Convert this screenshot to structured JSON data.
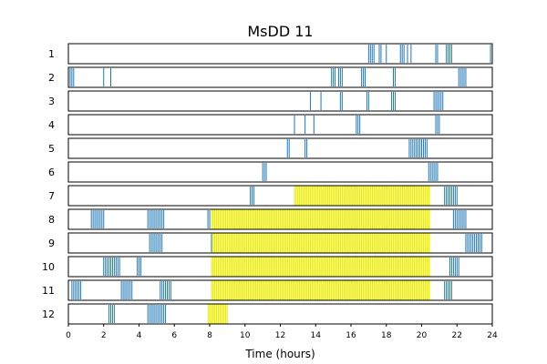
{
  "chart_data": {
    "type": "event-raster",
    "title": "MsDD 11",
    "xlabel": "Time (hours)",
    "ylabel": "",
    "xlim": [
      0,
      24
    ],
    "x_ticks": [
      0,
      2,
      4,
      6,
      8,
      10,
      12,
      14,
      16,
      18,
      20,
      22,
      24
    ],
    "grid": false,
    "event_color": "#1f77b4",
    "highlight_color": "#ffff66",
    "highlight_line_color": "#cccc00",
    "rows": [
      {
        "label": "1",
        "highlight": [],
        "events": [
          17.0,
          17.1,
          17.2,
          17.3,
          17.6,
          17.7,
          18.0,
          18.8,
          18.9,
          19.0,
          19.2,
          19.4,
          20.8,
          20.9,
          21.4,
          21.5,
          21.6,
          21.7,
          23.9
        ]
      },
      {
        "label": "2",
        "highlight": [],
        "events": [
          0.0,
          0.1,
          0.2,
          0.3,
          2.0,
          2.4,
          14.9,
          15.0,
          15.1,
          15.3,
          15.4,
          15.5,
          16.6,
          16.7,
          16.8,
          18.4,
          18.5,
          22.1,
          22.2,
          22.3,
          22.4,
          22.5
        ]
      },
      {
        "label": "3",
        "highlight": [],
        "events": [
          13.7,
          14.3,
          15.4,
          15.5,
          16.9,
          17.0,
          18.3,
          18.4,
          18.5,
          20.7,
          20.8,
          20.9,
          21.0,
          21.1,
          21.2
        ]
      },
      {
        "label": "4",
        "highlight": [],
        "events": [
          12.8,
          13.4,
          13.9,
          16.3,
          16.4,
          16.5,
          20.8,
          20.9,
          21.0
        ]
      },
      {
        "label": "5",
        "highlight": [],
        "events": [
          12.4,
          12.5,
          13.4,
          13.5,
          19.3,
          19.4,
          19.5,
          19.6,
          19.7,
          19.8,
          19.9,
          20.0,
          20.1,
          20.2,
          20.3
        ]
      },
      {
        "label": "6",
        "highlight": [],
        "events": [
          11.0,
          11.1,
          11.2,
          20.4,
          20.5,
          20.6,
          20.7,
          20.8,
          20.9
        ]
      },
      {
        "label": "7",
        "highlight": [
          [
            12.8,
            20.5
          ]
        ],
        "events": [
          10.3,
          10.4,
          10.5,
          21.3,
          21.4,
          21.5,
          21.6,
          21.7,
          21.8,
          21.9,
          22.0
        ]
      },
      {
        "label": "8",
        "highlight": [
          [
            8.1,
            20.5
          ]
        ],
        "events": [
          1.3,
          1.4,
          1.5,
          1.6,
          1.7,
          1.8,
          1.9,
          2.0,
          4.5,
          4.6,
          4.7,
          4.8,
          4.9,
          5.0,
          5.1,
          5.2,
          5.3,
          5.4,
          7.9,
          8.0,
          21.8,
          21.9,
          22.0,
          22.1,
          22.2,
          22.3,
          22.4,
          22.5
        ]
      },
      {
        "label": "9",
        "highlight": [
          [
            8.1,
            20.5
          ]
        ],
        "events": [
          4.6,
          4.7,
          4.8,
          4.9,
          5.0,
          5.1,
          5.2,
          5.3,
          8.1,
          22.5,
          22.6,
          22.7,
          22.8,
          22.9,
          23.0,
          23.1,
          23.2,
          23.3,
          23.4
        ]
      },
      {
        "label": "10",
        "highlight": [
          [
            8.1,
            20.5
          ]
        ],
        "events": [
          2.0,
          2.1,
          2.2,
          2.3,
          2.4,
          2.5,
          2.6,
          2.7,
          2.8,
          2.9,
          3.9,
          4.0,
          4.1,
          21.6,
          21.7,
          21.8,
          21.9,
          22.0,
          22.1
        ]
      },
      {
        "label": "11",
        "highlight": [
          [
            8.1,
            20.5
          ]
        ],
        "events": [
          0.2,
          0.3,
          0.4,
          0.5,
          0.6,
          0.7,
          3.0,
          3.1,
          3.2,
          3.3,
          3.4,
          3.5,
          3.6,
          5.2,
          5.3,
          5.4,
          5.5,
          5.6,
          5.7,
          5.8,
          21.3,
          21.4,
          21.5,
          21.6,
          21.7
        ]
      },
      {
        "label": "12",
        "highlight": [
          [
            7.9,
            9.0
          ]
        ],
        "events": [
          2.3,
          2.4,
          2.5,
          2.6,
          4.5,
          4.6,
          4.7,
          4.8,
          4.9,
          5.0,
          5.1,
          5.2,
          5.3,
          5.4,
          5.5
        ]
      }
    ]
  }
}
